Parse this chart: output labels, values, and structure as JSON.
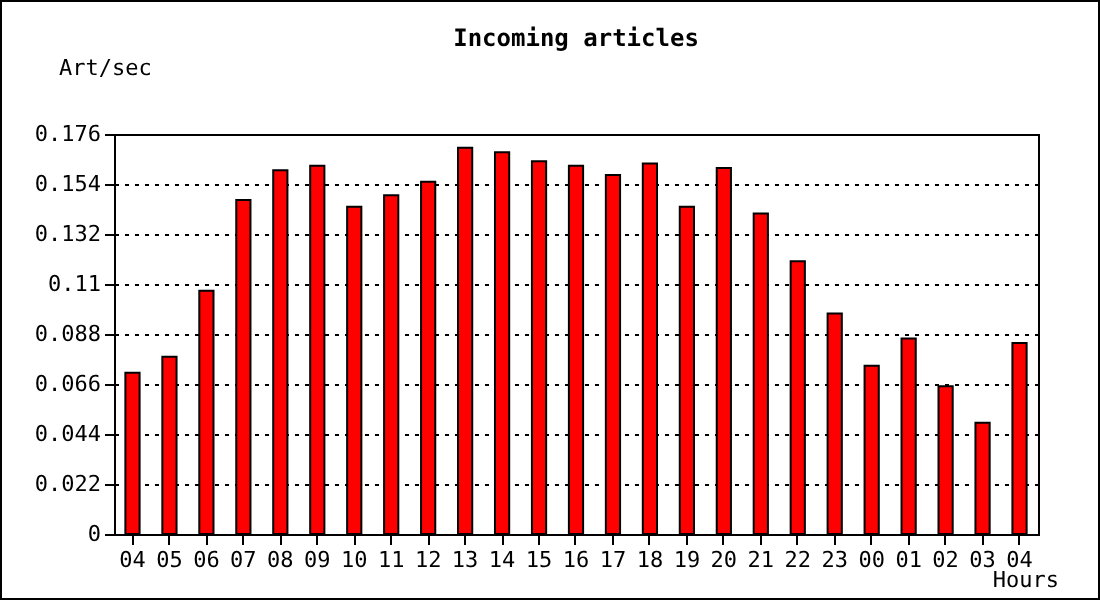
{
  "chart_data": {
    "type": "bar",
    "title": "Incoming articles",
    "xlabel": "Hours",
    "ylabel": "Art/sec",
    "categories": [
      "04",
      "05",
      "06",
      "07",
      "08",
      "09",
      "10",
      "11",
      "12",
      "13",
      "14",
      "15",
      "16",
      "17",
      "18",
      "19",
      "20",
      "21",
      "22",
      "23",
      "00",
      "01",
      "02",
      "03",
      "04"
    ],
    "values": [
      0.071,
      0.078,
      0.107,
      0.147,
      0.16,
      0.162,
      0.144,
      0.149,
      0.155,
      0.17,
      0.168,
      0.164,
      0.162,
      0.158,
      0.163,
      0.144,
      0.161,
      0.141,
      0.12,
      0.097,
      0.074,
      0.086,
      0.065,
      0.049,
      0.084
    ],
    "color": "#ff0000",
    "ylim": [
      0,
      0.176
    ],
    "yticks": [
      0,
      0.022,
      0.044,
      0.066,
      0.088,
      0.11,
      0.132,
      0.154,
      0.176
    ],
    "grid": "y",
    "line_style": "dotted"
  }
}
